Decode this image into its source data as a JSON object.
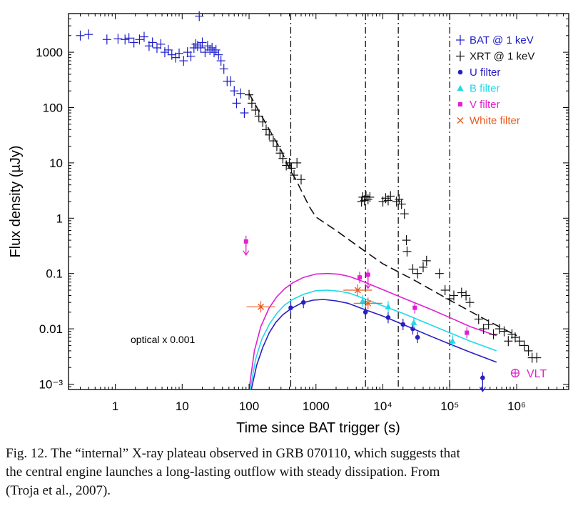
{
  "chart_data": {
    "type": "scatter",
    "xlabel": "Time since BAT trigger (s)",
    "ylabel": "Flux density (µJy)",
    "x_scale": "log",
    "y_scale": "log",
    "xlim": [
      0.2,
      6000000
    ],
    "ylim": [
      0.0008,
      5000
    ],
    "x_ticks": [
      {
        "value": 1,
        "label": "1"
      },
      {
        "value": 10,
        "label": "10"
      },
      {
        "value": 100,
        "label": "100"
      },
      {
        "value": 1000,
        "label": "1000"
      },
      {
        "value": 10000,
        "label": "10⁴"
      },
      {
        "value": 100000,
        "label": "10⁵"
      },
      {
        "value": 1000000,
        "label": "10⁶"
      }
    ],
    "y_ticks": [
      {
        "value": 0.001,
        "label": "10⁻³"
      },
      {
        "value": 0.01,
        "label": "0.01"
      },
      {
        "value": 0.1,
        "label": "0.1"
      },
      {
        "value": 1,
        "label": "1"
      },
      {
        "value": 10,
        "label": "10"
      },
      {
        "value": 100,
        "label": "100"
      },
      {
        "value": 1000,
        "label": "1000"
      }
    ],
    "annotation": "optical x 0.001",
    "vlt_label": "VLT",
    "vertical_lines": [
      420,
      5500,
      17000,
      100000
    ],
    "legend_position": "top-right",
    "series": [
      {
        "name": "BAT @ 1 keV",
        "color": "#1c1cc8",
        "marker": "plus",
        "points": [
          [
            0.3,
            2000
          ],
          [
            0.4,
            2100
          ],
          [
            0.75,
            1700
          ],
          [
            1.1,
            1750
          ],
          [
            1.4,
            1700
          ],
          [
            1.6,
            1800
          ],
          [
            1.9,
            1500
          ],
          [
            2.3,
            1700
          ],
          [
            2.7,
            1900
          ],
          [
            3.2,
            1300
          ],
          [
            3.6,
            1500
          ],
          [
            4.2,
            1200
          ],
          [
            4.8,
            1400
          ],
          [
            5.5,
            1000
          ],
          [
            6.2,
            1100
          ],
          [
            7.0,
            900
          ],
          [
            8.0,
            800
          ],
          [
            9.0,
            950
          ],
          [
            10.5,
            700
          ],
          [
            12,
            1000
          ],
          [
            13.5,
            850
          ],
          [
            15,
            1200
          ],
          [
            16,
            1400
          ],
          [
            17,
            1300
          ],
          [
            18,
            4500
          ],
          [
            19,
            1200
          ],
          [
            20,
            1500
          ],
          [
            22,
            1000
          ],
          [
            24,
            1300
          ],
          [
            26,
            1100
          ],
          [
            28,
            1200
          ],
          [
            30,
            1000
          ],
          [
            32,
            1100
          ],
          [
            35,
            900
          ],
          [
            38,
            700
          ],
          [
            42,
            500
          ],
          [
            47,
            300
          ],
          [
            53,
            300
          ],
          [
            60,
            200
          ],
          [
            65,
            120
          ],
          [
            75,
            180
          ],
          [
            85,
            80
          ]
        ]
      },
      {
        "name": "XRT @ 1 keV",
        "color": "#111111",
        "marker": "plus",
        "points": [
          [
            100,
            170
          ],
          [
            110,
            120
          ],
          [
            125,
            90
          ],
          [
            140,
            70
          ],
          [
            160,
            55
          ],
          [
            180,
            40
          ],
          [
            200,
            32
          ],
          [
            230,
            25
          ],
          [
            260,
            20
          ],
          [
            290,
            15
          ],
          [
            320,
            12
          ],
          [
            360,
            9
          ],
          [
            400,
            10
          ],
          [
            430,
            8
          ],
          [
            470,
            6
          ],
          [
            520,
            10
          ],
          [
            600,
            5
          ],
          [
            4800,
            2.0
          ],
          [
            5000,
            2.4
          ],
          [
            5300,
            2.1
          ],
          [
            5600,
            2.5
          ],
          [
            6000,
            2.2
          ],
          [
            6400,
            2.4
          ],
          [
            10000,
            2.0
          ],
          [
            11000,
            2.3
          ],
          [
            12000,
            2.1
          ],
          [
            13000,
            2.5
          ],
          [
            16000,
            2.0
          ],
          [
            17500,
            2.2
          ],
          [
            19000,
            1.8
          ],
          [
            21000,
            1.2
          ],
          [
            22500,
            0.4
          ],
          [
            23000,
            0.25
          ],
          [
            28000,
            0.12
          ],
          [
            33000,
            0.1
          ],
          [
            40000,
            0.13
          ],
          [
            45000,
            0.17
          ],
          [
            70000,
            0.1
          ],
          [
            85000,
            0.05
          ],
          [
            100000,
            0.035
          ],
          [
            115000,
            0.04
          ],
          [
            150000,
            0.045
          ],
          [
            175000,
            0.04
          ],
          [
            200000,
            0.03
          ],
          [
            270000,
            0.015
          ],
          [
            320000,
            0.01
          ],
          [
            380000,
            0.012
          ],
          [
            450000,
            0.008
          ],
          [
            550000,
            0.01
          ],
          [
            650000,
            0.009
          ],
          [
            750000,
            0.006
          ],
          [
            850000,
            0.008
          ],
          [
            950000,
            0.007
          ],
          [
            1100000,
            0.006
          ],
          [
            1300000,
            0.005
          ],
          [
            1500000,
            0.004
          ],
          [
            1700000,
            0.003
          ],
          [
            2000000,
            0.003
          ]
        ]
      },
      {
        "name": "U filter",
        "color": "#2a1fc0",
        "marker": "dot",
        "points": [
          [
            420,
            0.024
          ],
          [
            650,
            0.03
          ],
          [
            5500,
            0.02
          ],
          [
            12000,
            0.016
          ],
          [
            20000,
            0.012
          ],
          [
            28000,
            0.01
          ],
          [
            33000,
            0.007
          ],
          [
            310000,
            0.0013
          ]
        ]
      },
      {
        "name": "B filter",
        "color": "#22d8e8",
        "marker": "triangle",
        "points": [
          [
            5000,
            0.032
          ],
          [
            12000,
            0.025
          ],
          [
            29000,
            0.013
          ],
          [
            110000,
            0.006
          ]
        ]
      },
      {
        "name": "V filter",
        "color": "#e020d0",
        "marker": "square",
        "points": [
          [
            90,
            0.38
          ],
          [
            4500,
            0.085
          ],
          [
            6000,
            0.095
          ],
          [
            30000,
            0.024
          ],
          [
            180000,
            0.0085
          ]
        ]
      },
      {
        "name": "White filter",
        "color": "#e85a20",
        "marker": "cross",
        "points": [
          [
            150,
            0.025
          ],
          [
            4200,
            0.05
          ],
          [
            6000,
            0.029
          ]
        ]
      }
    ],
    "upper_limits": [
      {
        "color": "#e020d0",
        "x": 90,
        "y": 0.38
      },
      {
        "color": "#e020d0",
        "x": 6000,
        "y": 0.095
      },
      {
        "color": "#2a1fc0",
        "x": 310000,
        "y": 0.0013
      }
    ],
    "vlt_point": {
      "x": 310000,
      "y": 0.0013
    },
    "model_lines": [
      {
        "color": "#2a1fc0",
        "style": "solid",
        "points": [
          [
            108,
            0.0008
          ],
          [
            130,
            0.0022
          ],
          [
            160,
            0.0046
          ],
          [
            200,
            0.0085
          ],
          [
            250,
            0.013
          ],
          [
            320,
            0.018
          ],
          [
            420,
            0.023
          ],
          [
            600,
            0.029
          ],
          [
            900,
            0.033
          ],
          [
            1300,
            0.034
          ],
          [
            2000,
            0.032
          ],
          [
            3000,
            0.029
          ],
          [
            5000,
            0.023
          ],
          [
            10000,
            0.017
          ],
          [
            20000,
            0.012
          ],
          [
            50000,
            0.0075
          ],
          [
            100000,
            0.0053
          ],
          [
            200000,
            0.0038
          ],
          [
            500000,
            0.0025
          ]
        ]
      },
      {
        "color": "#22d8e8",
        "style": "solid",
        "points": [
          [
            104,
            0.0008
          ],
          [
            125,
            0.0028
          ],
          [
            155,
            0.0065
          ],
          [
            200,
            0.012
          ],
          [
            260,
            0.019
          ],
          [
            340,
            0.027
          ],
          [
            450,
            0.034
          ],
          [
            650,
            0.042
          ],
          [
            1000,
            0.049
          ],
          [
            1500,
            0.05
          ],
          [
            2200,
            0.048
          ],
          [
            3200,
            0.044
          ],
          [
            5000,
            0.036
          ],
          [
            10000,
            0.026
          ],
          [
            20000,
            0.019
          ],
          [
            50000,
            0.012
          ],
          [
            100000,
            0.0085
          ],
          [
            200000,
            0.006
          ],
          [
            500000,
            0.004
          ]
        ]
      },
      {
        "color": "#e020d0",
        "style": "solid",
        "points": [
          [
            100,
            0.0008
          ],
          [
            120,
            0.004
          ],
          [
            150,
            0.011
          ],
          [
            200,
            0.024
          ],
          [
            260,
            0.038
          ],
          [
            340,
            0.053
          ],
          [
            450,
            0.068
          ],
          [
            650,
            0.085
          ],
          [
            1000,
            0.098
          ],
          [
            1500,
            0.1
          ],
          [
            2200,
            0.097
          ],
          [
            3200,
            0.088
          ],
          [
            5000,
            0.072
          ],
          [
            10000,
            0.051
          ],
          [
            20000,
            0.036
          ],
          [
            50000,
            0.023
          ],
          [
            100000,
            0.016
          ],
          [
            200000,
            0.011
          ],
          [
            500000,
            0.0075
          ]
        ]
      },
      {
        "color": "#111111",
        "style": "dashed",
        "points": [
          [
            100,
            180
          ],
          [
            200,
            40
          ],
          [
            300,
            17
          ],
          [
            420,
            7
          ],
          [
            500,
            5
          ],
          [
            600,
            3.2
          ],
          [
            800,
            1.6
          ],
          [
            1000,
            1.05
          ],
          [
            2000,
            0.6
          ],
          [
            5000,
            0.27
          ],
          [
            10000,
            0.15
          ],
          [
            30000,
            0.075
          ],
          [
            100000,
            0.033
          ],
          [
            300000,
            0.016
          ],
          [
            1000000,
            0.0075
          ]
        ]
      }
    ]
  },
  "caption": {
    "lines": [
      "Fig. 12. The “internal” X-ray plateau observed in GRB 070110, which suggests that",
      "the central engine launches a long-lasting outflow with steady dissipation. From",
      "(Troja et al., 2007)."
    ]
  }
}
